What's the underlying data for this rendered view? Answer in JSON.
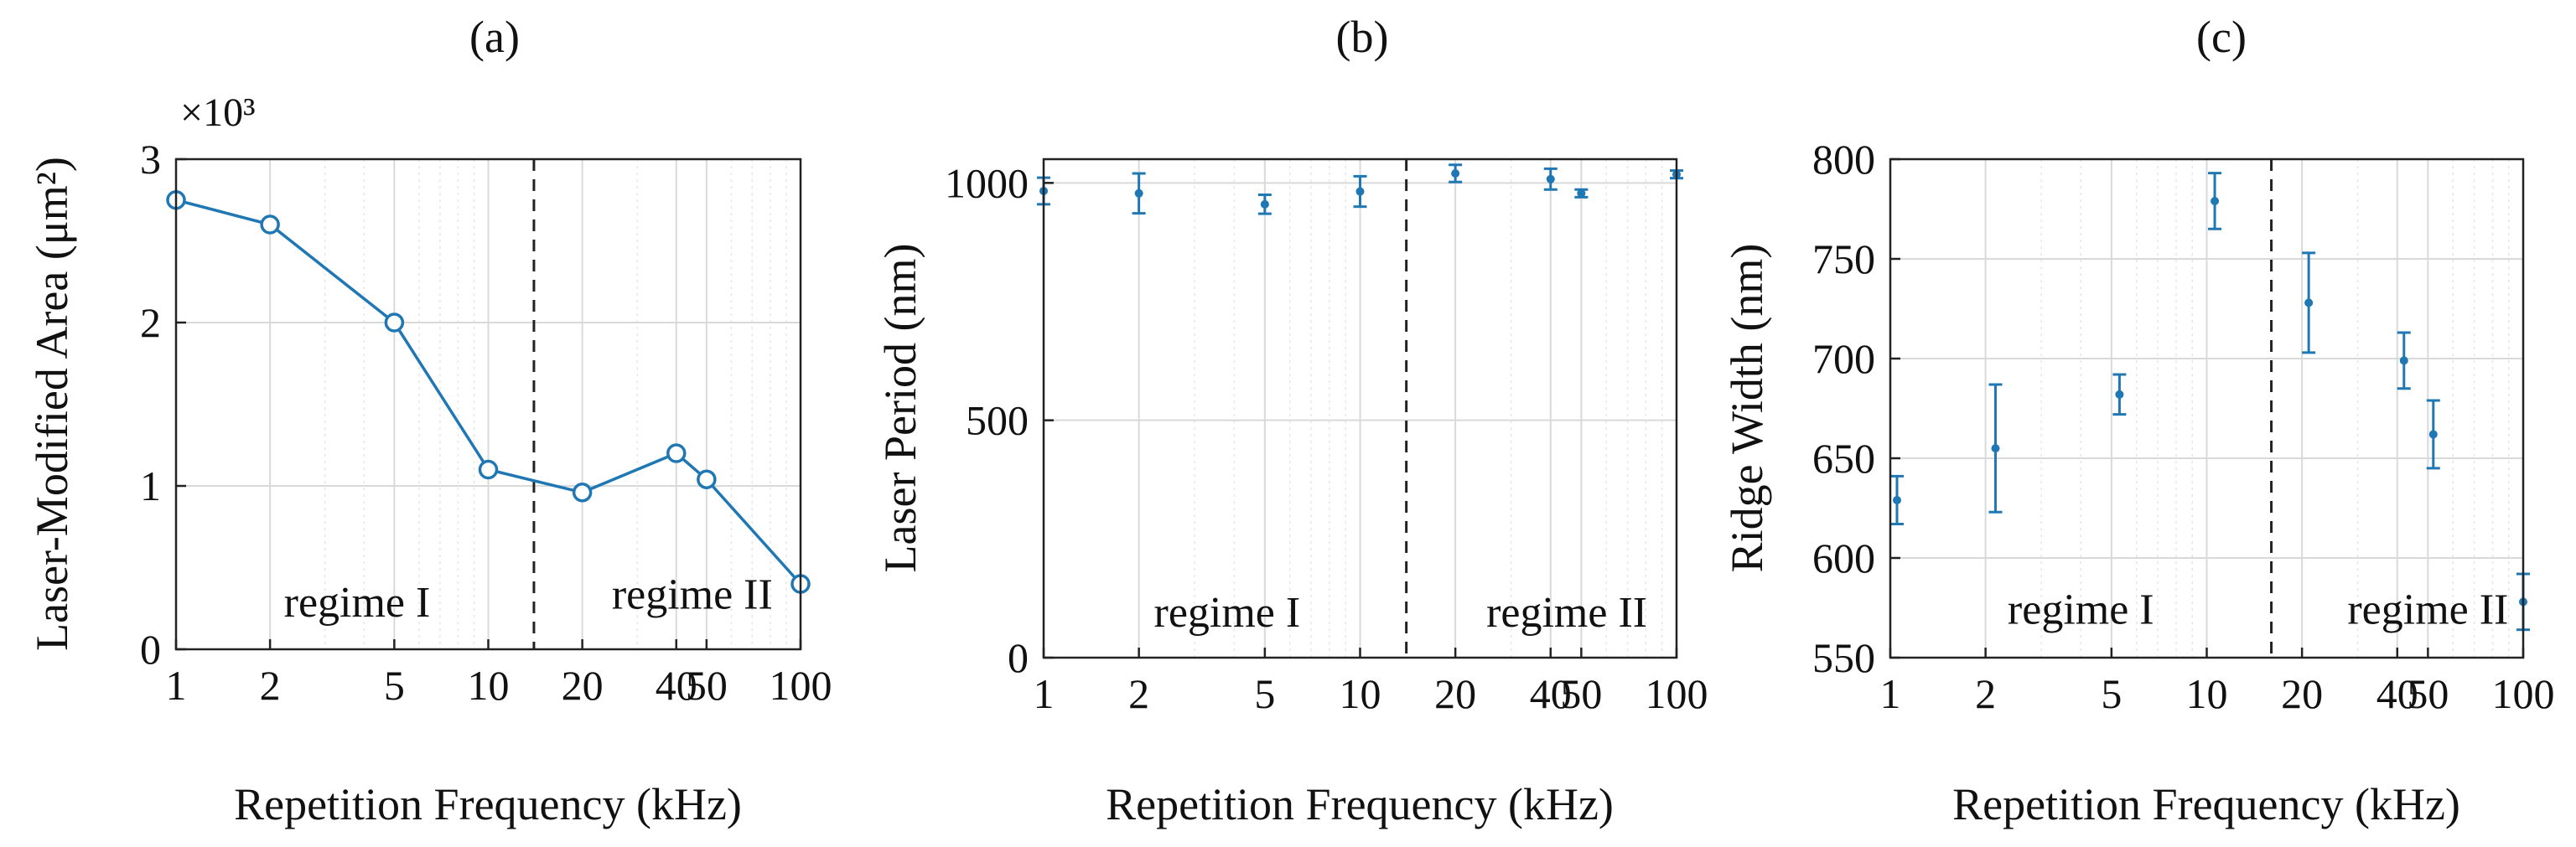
{
  "figure": {
    "line_color": "#1f77b4",
    "axis_color": "#222222",
    "grid_color": "#d9d9d9"
  },
  "chart_data": [
    {
      "type": "line",
      "panel": "(a)",
      "title": "",
      "xlabel": "Repetition Frequency (kHz)",
      "ylabel": "Laser-Modified Area (μm²)",
      "y_multiplier": "×10³",
      "xscale": "log",
      "xlim": [
        1,
        100
      ],
      "ylim": [
        0,
        3
      ],
      "xticks": [
        1,
        2,
        5,
        10,
        20,
        40,
        50,
        100
      ],
      "xtick_labels": [
        "1",
        "2",
        "5",
        "10",
        "20",
        "40",
        "50",
        "100"
      ],
      "yticks": [
        0,
        1,
        2,
        3
      ],
      "ytick_labels": [
        "0",
        "1",
        "2",
        "3"
      ],
      "x": [
        1,
        2,
        5,
        10,
        20,
        40,
        50,
        100
      ],
      "y": [
        2.75,
        2.6,
        2.0,
        1.1,
        0.96,
        1.2,
        1.04,
        0.4
      ],
      "marker": "open-circle",
      "divider_x": 14,
      "regions": [
        {
          "label": "regime I",
          "x": 3.8,
          "y": 0.2
        },
        {
          "label": "regime II",
          "x": 45,
          "y": 0.25
        }
      ]
    },
    {
      "type": "scatter",
      "panel": "(b)",
      "title": "",
      "xlabel": "Repetition Frequency (kHz)",
      "ylabel": "Laser Period (nm)",
      "xscale": "log",
      "xlim": [
        1,
        100
      ],
      "ylim": [
        0,
        1050
      ],
      "xticks": [
        1,
        2,
        5,
        10,
        20,
        40,
        50,
        100
      ],
      "xtick_labels": [
        "1",
        "2",
        "5",
        "10",
        "20",
        "40",
        "50",
        "100"
      ],
      "yticks": [
        0,
        500,
        1000
      ],
      "ytick_labels": [
        "0",
        "500",
        "1000"
      ],
      "x": [
        1,
        2,
        5,
        10,
        20,
        40,
        50,
        100
      ],
      "y": [
        983,
        978,
        955,
        982,
        1020,
        1008,
        978,
        1018
      ],
      "error": [
        28,
        42,
        20,
        32,
        18,
        22,
        8,
        8
      ],
      "marker": "dot-errorbar",
      "divider_x": 14,
      "regions": [
        {
          "label": "regime I",
          "x": 3.8,
          "y": 65
        },
        {
          "label": "regime II",
          "x": 45,
          "y": 65
        }
      ]
    },
    {
      "type": "scatter",
      "panel": "(c)",
      "title": "",
      "xlabel": "Repetition Frequency (kHz)",
      "ylabel": "Ridge Width (nm)",
      "xscale": "log",
      "xlim": [
        1,
        100
      ],
      "ylim": [
        550,
        800
      ],
      "xticks": [
        1,
        2,
        5,
        10,
        20,
        40,
        50,
        100
      ],
      "xtick_labels": [
        "1",
        "2",
        "5",
        "10",
        "20",
        "40",
        "50",
        "100"
      ],
      "yticks": [
        550,
        600,
        650,
        700,
        750,
        800
      ],
      "ytick_labels": [
        "550",
        "600",
        "650",
        "700",
        "750",
        "800"
      ],
      "x": [
        1.05,
        2.15,
        5.3,
        10.6,
        21,
        42,
        52,
        100
      ],
      "y": [
        629,
        655,
        682,
        779,
        728,
        699,
        662,
        578
      ],
      "error": [
        12,
        32,
        10,
        14,
        25,
        14,
        17,
        14
      ],
      "marker": "dot-errorbar",
      "divider_x": 16,
      "regions": [
        {
          "label": "regime I",
          "x": 4.0,
          "y": 567
        },
        {
          "label": "regime II",
          "x": 50,
          "y": 567
        }
      ]
    }
  ]
}
